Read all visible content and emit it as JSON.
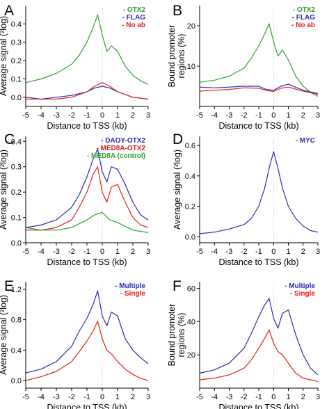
{
  "chart_data": [
    {
      "type": "line",
      "panel_label": "A",
      "xlabel": "Distance to TSS (kb)",
      "ylabel": "Average signal (²log)",
      "xlim": [
        -5,
        3
      ],
      "ylim": [
        -0.05,
        0.5
      ],
      "xticks": [
        "-5",
        "-4",
        "-3",
        "-2",
        "-1",
        "0",
        "1",
        "2",
        "3"
      ],
      "yticks": [
        "0.0",
        "0.1",
        "0.2",
        "0.3",
        "0.4"
      ],
      "legend_position": "top-right",
      "series": [
        {
          "name": "OTX2",
          "color": "#2ca02c",
          "x": [
            -5,
            -4,
            -3,
            -2,
            -1.5,
            -1,
            -0.6,
            -0.3,
            0,
            0.3,
            0.6,
            1,
            1.5,
            2,
            2.5,
            3
          ],
          "y": [
            0.08,
            0.1,
            0.13,
            0.18,
            0.23,
            0.3,
            0.38,
            0.45,
            0.34,
            0.25,
            0.28,
            0.25,
            0.17,
            0.12,
            0.09,
            0.07
          ]
        },
        {
          "name": "FLAG",
          "color": "#2a2ab0",
          "x": [
            -5,
            -4,
            -3,
            -2,
            -1,
            -0.5,
            0,
            0.5,
            1,
            2,
            3
          ],
          "y": [
            0.0,
            -0.01,
            0.0,
            0.01,
            0.03,
            0.05,
            0.06,
            0.05,
            0.03,
            0.0,
            -0.01
          ]
        },
        {
          "name": "No ab",
          "color": "#e02020",
          "x": [
            -5,
            -4,
            -3,
            -2,
            -1,
            -0.5,
            0,
            0.5,
            1,
            2,
            3
          ],
          "y": [
            -0.01,
            -0.01,
            -0.01,
            0.0,
            0.03,
            0.06,
            0.08,
            0.06,
            0.03,
            0.0,
            -0.01
          ]
        }
      ]
    },
    {
      "type": "line",
      "panel_label": "B",
      "xlabel": "Distance to TSS (kb)",
      "ylabel": "Bound promoter regions (%)",
      "xlim": [
        -5,
        3
      ],
      "ylim": [
        0,
        25
      ],
      "xticks": [
        "-5",
        "-4",
        "-3",
        "-2",
        "-1",
        "0",
        "1",
        "2",
        "3"
      ],
      "yticks": [
        "10",
        "20"
      ],
      "legend_position": "top-right",
      "series": [
        {
          "name": "OTX2",
          "color": "#2ca02c",
          "x": [
            -5,
            -4,
            -3,
            -2,
            -1.5,
            -1,
            -0.6,
            -0.3,
            0,
            0.3,
            0.6,
            1,
            1.5,
            2,
            2.5,
            3
          ],
          "y": [
            6,
            6.5,
            7.5,
            9.5,
            12,
            15,
            18,
            20.5,
            16,
            12.5,
            14,
            11.5,
            7.5,
            5,
            3.5,
            2.5
          ]
        },
        {
          "name": "FLAG",
          "color": "#2a2ab0",
          "x": [
            -5,
            -4,
            -3,
            -2,
            -1,
            -0.5,
            0,
            0.5,
            1,
            2,
            3
          ],
          "y": [
            4.8,
            4.6,
            4.8,
            5,
            5,
            4.2,
            4,
            5,
            5.5,
            4,
            3.2
          ]
        },
        {
          "name": "No ab",
          "color": "#e02020",
          "x": [
            -5,
            -4,
            -3,
            -2,
            -1,
            -0.5,
            0,
            0.5,
            1,
            2,
            3
          ],
          "y": [
            3.8,
            4,
            4.2,
            4.6,
            4.5,
            4,
            3.7,
            4.5,
            4.8,
            3.8,
            3
          ]
        }
      ]
    },
    {
      "type": "line",
      "panel_label": "C",
      "xlabel": "Distance to TSS (kb)",
      "ylabel": "Average signal (²log)",
      "xlim": [
        -5,
        3
      ],
      "ylim": [
        0,
        0.42
      ],
      "xticks": [
        "-5",
        "-4",
        "-3",
        "-2",
        "-1",
        "0",
        "1",
        "2",
        "3"
      ],
      "yticks": [
        "0.0",
        "0.1",
        "0.2",
        "0.3",
        "0.4"
      ],
      "legend_position": "top-right",
      "series": [
        {
          "name": "DAOY-OTX2",
          "color": "#2a2ab0",
          "x": [
            -5,
            -4,
            -3,
            -2,
            -1.5,
            -1,
            -0.6,
            -0.3,
            0,
            0.3,
            0.6,
            1,
            1.5,
            2,
            2.5,
            3
          ],
          "y": [
            0.06,
            0.07,
            0.09,
            0.14,
            0.19,
            0.26,
            0.33,
            0.37,
            0.28,
            0.24,
            0.3,
            0.29,
            0.23,
            0.16,
            0.11,
            0.09
          ]
        },
        {
          "name": "MED8A-OTX2",
          "color": "#e02020",
          "x": [
            -5,
            -4,
            -3,
            -2,
            -1.5,
            -1,
            -0.6,
            -0.3,
            0,
            0.3,
            0.6,
            1,
            1.5,
            2,
            2.5,
            3
          ],
          "y": [
            0.05,
            0.05,
            0.06,
            0.09,
            0.14,
            0.2,
            0.27,
            0.3,
            0.2,
            0.16,
            0.22,
            0.23,
            0.16,
            0.1,
            0.07,
            0.06
          ]
        },
        {
          "name": "MED8A (control)",
          "color": "#2ca02c",
          "x": [
            -5,
            -4,
            -3,
            -2,
            -1,
            -0.5,
            0,
            0.5,
            1,
            2,
            3
          ],
          "y": [
            0.06,
            0.05,
            0.05,
            0.06,
            0.09,
            0.11,
            0.12,
            0.09,
            0.08,
            0.05,
            0.04
          ]
        }
      ]
    },
    {
      "type": "line",
      "panel_label": "D",
      "xlabel": "Distance to TSS (kb)",
      "ylabel": "Average signal (²log)",
      "xlim": [
        -5,
        3
      ],
      "ylim": [
        -0.04,
        0.66
      ],
      "xticks": [
        "-5",
        "-4",
        "-3",
        "-2",
        "-1",
        "0",
        "1",
        "2",
        "3"
      ],
      "yticks": [
        "0.0",
        "0.2",
        "0.4",
        "0.6"
      ],
      "legend_position": "top-right",
      "series": [
        {
          "name": "MYC",
          "color": "#2a2ab0",
          "x": [
            -5,
            -4,
            -3,
            -2,
            -1.5,
            -1,
            -0.6,
            -0.3,
            0,
            0.3,
            0.6,
            1,
            1.5,
            2,
            2.5,
            3
          ],
          "y": [
            0.02,
            0.03,
            0.05,
            0.08,
            0.12,
            0.2,
            0.32,
            0.45,
            0.56,
            0.45,
            0.32,
            0.2,
            0.12,
            0.07,
            0.04,
            0.03
          ]
        }
      ]
    },
    {
      "type": "line",
      "panel_label": "E",
      "xlabel": "Distance to TSS (kb)",
      "ylabel": "Average signal (²log)",
      "xlim": [
        -5,
        3
      ],
      "ylim": [
        -0.1,
        1.3
      ],
      "xticks": [
        "-5",
        "-4",
        "-3",
        "-2",
        "-1",
        "0",
        "1",
        "2",
        "3"
      ],
      "yticks": [
        "0.0",
        "0.4",
        "0.8",
        "1.2"
      ],
      "legend_position": "top-right",
      "series": [
        {
          "name": "Multiple",
          "color": "#2a2ab0",
          "x": [
            -5,
            -4,
            -3,
            -2,
            -1.5,
            -1,
            -0.6,
            -0.3,
            0,
            0.3,
            0.6,
            1,
            1.5,
            2,
            2.5,
            3
          ],
          "y": [
            0.1,
            0.15,
            0.25,
            0.45,
            0.65,
            0.82,
            1.0,
            1.18,
            0.85,
            0.72,
            0.9,
            0.85,
            0.55,
            0.4,
            0.3,
            0.22
          ]
        },
        {
          "name": "Single",
          "color": "#e02020",
          "x": [
            -5,
            -4,
            -3,
            -2,
            -1.5,
            -1,
            -0.6,
            -0.3,
            0,
            0.3,
            0.6,
            1,
            1.5,
            2,
            2.5,
            3
          ],
          "y": [
            0.0,
            0.05,
            0.12,
            0.25,
            0.38,
            0.52,
            0.65,
            0.78,
            0.55,
            0.4,
            0.35,
            0.25,
            0.15,
            0.08,
            0.03,
            0.0
          ]
        }
      ]
    },
    {
      "type": "line",
      "panel_label": "F",
      "xlabel": "Distance to TSS (kb)",
      "ylabel": "Bound promoter regions (%)",
      "xlim": [
        -5,
        3
      ],
      "ylim": [
        0,
        64
      ],
      "xticks": [
        "-5",
        "-4",
        "-3",
        "-2",
        "-1",
        "0",
        "1",
        "2",
        "3"
      ],
      "yticks": [
        "20",
        "40",
        "60"
      ],
      "legend_position": "top-right",
      "series": [
        {
          "name": "Multiple",
          "color": "#2a2ab0",
          "x": [
            -5,
            -4,
            -3,
            -2,
            -1.5,
            -1,
            -0.6,
            -0.3,
            0,
            0.3,
            0.6,
            1,
            1.5,
            2,
            2.5,
            3
          ],
          "y": [
            9,
            11,
            15,
            24,
            33,
            43,
            50,
            54,
            42,
            36,
            45,
            47,
            32,
            20,
            12,
            8
          ]
        },
        {
          "name": "Single",
          "color": "#e02020",
          "x": [
            -5,
            -4,
            -3,
            -2,
            -1.5,
            -1,
            -0.6,
            -0.3,
            0,
            0.3,
            0.6,
            1,
            1.5,
            2,
            2.5,
            3
          ],
          "y": [
            5,
            6,
            8,
            12,
            17,
            24,
            30,
            35,
            27,
            22,
            20,
            15,
            9,
            6,
            5,
            4
          ]
        }
      ]
    }
  ]
}
